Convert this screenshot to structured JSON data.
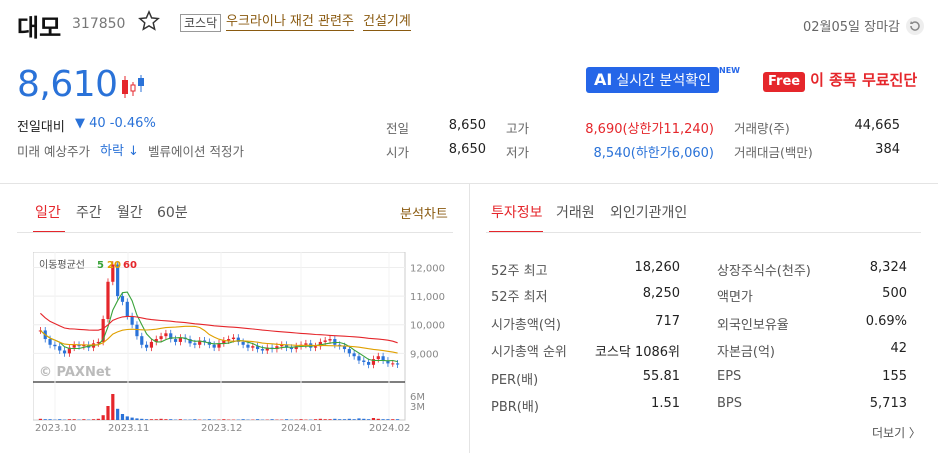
{
  "header": {
    "name": "대모",
    "code": "317850",
    "market_badge": "코스닥",
    "themes": [
      "우크라이나 재건 관련주",
      "건설기계"
    ],
    "market_status": "02월05일 장마감"
  },
  "price": {
    "current": "8,610",
    "change_label": "전일대비",
    "change_value": "▼ 40 -0.46%",
    "forecast_label": "미래 예상주가",
    "forecast_value": "하락 ↓",
    "valuation_label": "벨류에이션 적정가"
  },
  "promos": {
    "ai_prefix": "AI",
    "ai_label": "실시간 분석확인",
    "new_mark": "NEW",
    "free_pill": "Free",
    "free_label": "이 종목 무료진단"
  },
  "quote": {
    "prev_label": "전일",
    "prev": "8,650",
    "open_label": "시가",
    "open": "8,650",
    "high_label": "고가",
    "high": "8,690(상한가11,240)",
    "low_label": "저가",
    "low": "8,540(하한가6,060)",
    "volume_label": "거래량(주)",
    "volume": "44,665",
    "amount_label": "거래대금(백만)",
    "amount": "384"
  },
  "chart_tabs": [
    "일간",
    "주간",
    "월간",
    "60분"
  ],
  "chart_link": "분석차트",
  "info_tabs": [
    "투자정보",
    "거래원",
    "외인기관개인"
  ],
  "info_left": [
    {
      "label": "52주 최고",
      "value": "18,260"
    },
    {
      "label": "52주 최저",
      "value": "8,250"
    },
    {
      "label": "시가총액(억)",
      "value": "717"
    },
    {
      "label": "시가총액 순위",
      "value": "코스닥 1086위"
    },
    {
      "label": "PER(배)",
      "value": "55.81"
    },
    {
      "label": "PBR(배)",
      "value": "1.51"
    }
  ],
  "info_right": [
    {
      "label": "상장주식수(천주)",
      "value": "8,324"
    },
    {
      "label": "액면가",
      "value": "500"
    },
    {
      "label": "외국인보유율",
      "value": "0.69%"
    },
    {
      "label": "자본금(억)",
      "value": "42"
    },
    {
      "label": "EPS",
      "value": "155"
    },
    {
      "label": "BPS",
      "value": "5,713"
    }
  ],
  "more_link": "더보기 〉",
  "chart_data": {
    "type": "line",
    "legend_title": "이동평균선",
    "ma_labels": [
      "5",
      "20",
      "60"
    ],
    "ma_colors": [
      "#3aa33a",
      "#e0a000",
      "#e5262b"
    ],
    "watermark": "© PAXNet",
    "y_ticks": [
      "12,000",
      "11,000",
      "10,000",
      "9,000"
    ],
    "vol_ticks": [
      "6M",
      "3M"
    ],
    "x_ticks": [
      "2023.10",
      "2023.11",
      "2023.12",
      "2024.01",
      "2024.02"
    ],
    "ylim": [
      8000,
      12400
    ],
    "closes": [
      9800,
      9500,
      9300,
      9250,
      9100,
      9000,
      9200,
      9300,
      9250,
      9300,
      9200,
      9350,
      9400,
      10200,
      11500,
      12100,
      11000,
      10800,
      10300,
      10000,
      9600,
      9300,
      9200,
      9400,
      9500,
      9600,
      9700,
      9500,
      9400,
      9550,
      9500,
      9350,
      9300,
      9450,
      9400,
      9300,
      9200,
      9350,
      9450,
      9500,
      9550,
      9400,
      9300,
      9200,
      9250,
      9150,
      9100,
      9200,
      9150,
      9250,
      9300,
      9200,
      9150,
      9250,
      9300,
      9350,
      9200,
      9250,
      9400,
      9450,
      9500,
      9300,
      9250,
      9150,
      9000,
      8900,
      8750,
      8700,
      8600,
      8800,
      8900,
      8750,
      8650,
      8650,
      8610
    ],
    "volumes": [
      0.3,
      0.2,
      0.2,
      0.1,
      0.2,
      0.1,
      0.2,
      0.2,
      0.1,
      0.2,
      0.1,
      0.2,
      0.3,
      1.2,
      3.5,
      6.5,
      2.8,
      1.5,
      0.9,
      0.6,
      0.4,
      0.3,
      0.2,
      0.2,
      0.2,
      0.3,
      0.2,
      0.2,
      0.1,
      0.2,
      0.1,
      0.1,
      0.2,
      0.1,
      0.1,
      0.2,
      0.1,
      0.1,
      0.2,
      0.1,
      0.1,
      0.1,
      0.2,
      0.1,
      0.1,
      0.2,
      0.1,
      0.1,
      0.2,
      0.1,
      0.1,
      0.2,
      0.1,
      0.1,
      0.2,
      0.1,
      0.1,
      0.2,
      0.3,
      0.2,
      0.2,
      0.3,
      0.2,
      0.2,
      0.3,
      0.2,
      0.4,
      0.3,
      0.2,
      0.5,
      0.3,
      0.2,
      0.2,
      0.2,
      0.2
    ]
  }
}
